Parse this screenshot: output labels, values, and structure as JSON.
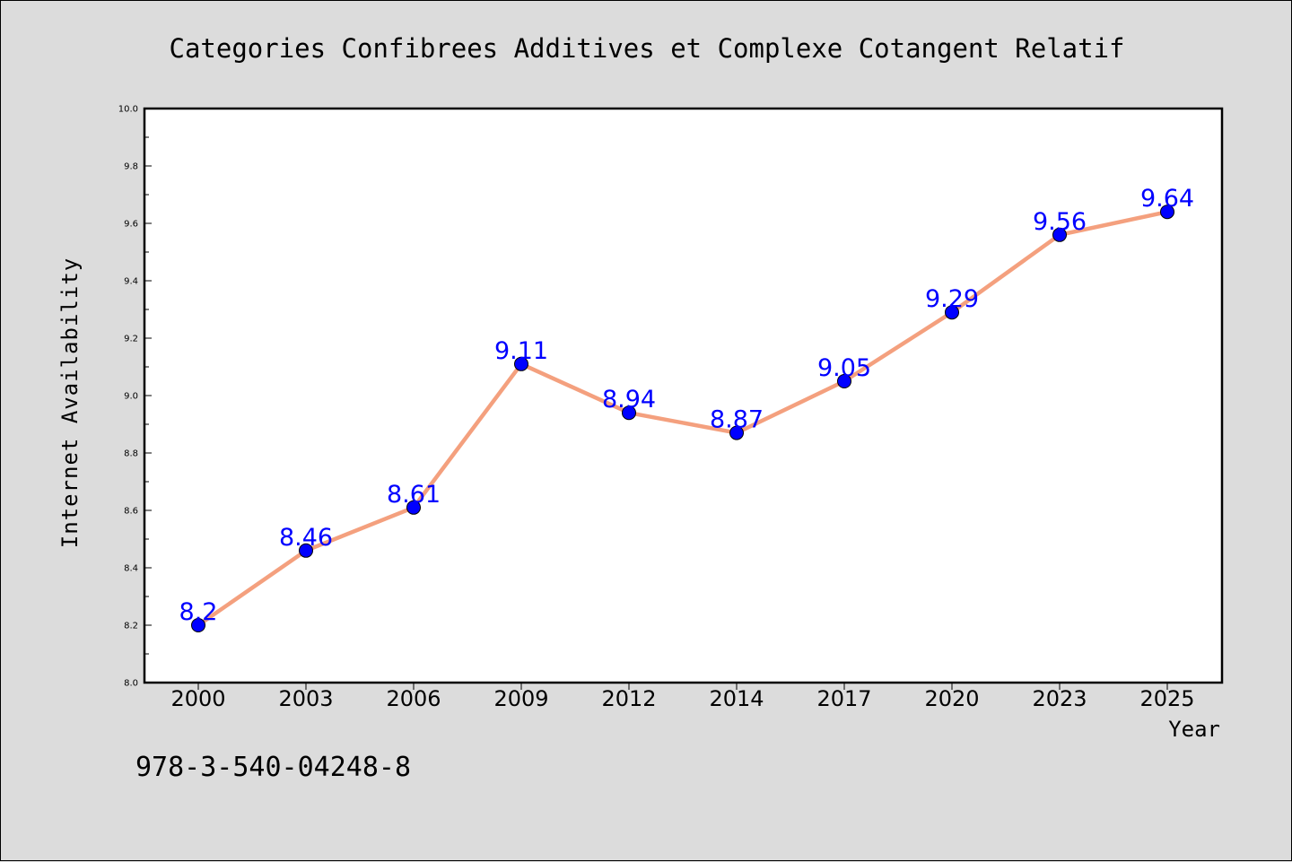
{
  "chart_data": {
    "type": "line",
    "title": "Categories Confibrees Additives et Complexe Cotangent Relatif",
    "xlabel": "Year",
    "ylabel": "Internet Availability",
    "categories": [
      "2000",
      "2003",
      "2006",
      "2009",
      "2012",
      "2014",
      "2017",
      "2020",
      "2023",
      "2025"
    ],
    "series": [
      {
        "values": [
          8.2,
          8.46,
          8.61,
          9.11,
          8.94,
          8.87,
          9.05,
          9.29,
          9.56,
          9.64
        ],
        "data_labels": [
          "8.2",
          "8.46",
          "8.61",
          "9.11",
          "8.94",
          "8.87",
          "9.05",
          "9.29",
          "9.56",
          "9.64"
        ],
        "line_color": "#f4a07e",
        "marker_color": "#0000ff",
        "label_color": "#0000ff"
      }
    ],
    "ylim": [
      8.0,
      10.0
    ],
    "yticks": [
      "8.0",
      "8.2",
      "8.4",
      "8.6",
      "8.8",
      "9.0",
      "9.2",
      "9.4",
      "9.6",
      "9.8",
      "10.0"
    ],
    "grid": false,
    "legend": "none"
  },
  "footer": {
    "note": "978-3-540-04248-8"
  },
  "colors": {
    "background": "#dcdcdc",
    "plot_background": "#ffffff"
  }
}
